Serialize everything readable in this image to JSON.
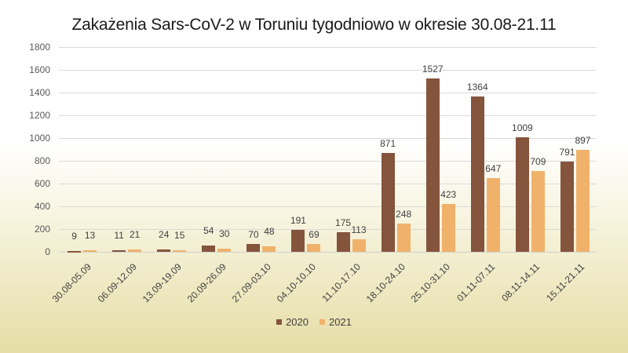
{
  "chart_data": {
    "type": "bar",
    "title": "Zakażenia Sars-CoV-2 w Toruniu tygodniowo w okresie 30.08-21.11",
    "xlabel": "",
    "ylabel": "",
    "ylim": [
      0,
      1800
    ],
    "yticks": [
      0,
      200,
      400,
      600,
      800,
      1000,
      1200,
      1400,
      1600,
      1800
    ],
    "grid": true,
    "legend_position": "bottom",
    "categories": [
      "30.08-05.09",
      "06.09-12.09",
      "13.09-19.09",
      "20.09-26.09",
      "27.09-03.10",
      "04.10-10.10",
      "11.10-17.10",
      "18.10-24.10",
      "25.10-31.10",
      "01.11-07.11",
      "08.11-14.11",
      "15.11-21.11"
    ],
    "series": [
      {
        "name": "2020",
        "color": "#85543c",
        "values": [
          9,
          11,
          24,
          54,
          70,
          191,
          175,
          871,
          1527,
          1364,
          1009,
          791
        ]
      },
      {
        "name": "2021",
        "color": "#f0b26b",
        "values": [
          13,
          21,
          15,
          30,
          48,
          69,
          113,
          248,
          423,
          647,
          709,
          897
        ]
      }
    ]
  }
}
